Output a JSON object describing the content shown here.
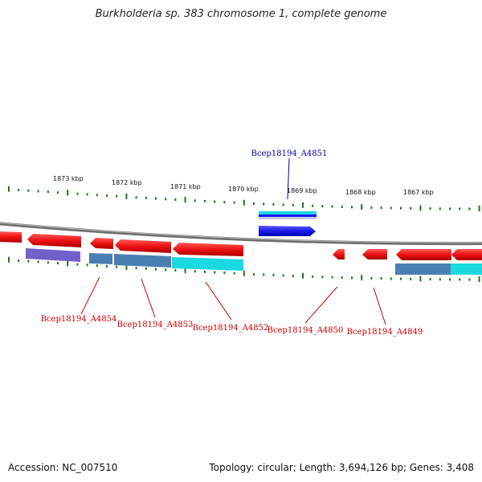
{
  "title": "Burkholderia sp. 383 chromosome 1, complete genome",
  "footer": {
    "accession_label": "Accession:",
    "accession": "NC_007510",
    "topology_text": "Topology: circular; Length: 3,694,126 bp; Genes: 3,408"
  },
  "colors": {
    "backbone": "#7a7a7a",
    "tick": "#1a7a1a",
    "gene_red": "#ee1111",
    "gene_blue": "#1a1aee",
    "feature_purple": "#7060c8",
    "feature_steel": "#4a7fb4",
    "feature_cyan": "#1ad9e0",
    "label_red": "#cc0000",
    "label_blue": "#0000aa"
  },
  "ticks": [
    "1873 kbp",
    "1872 kbp",
    "1871 kbp",
    "1870 kbp",
    "1869 kbp",
    "1868 kbp",
    "1867 kbp"
  ],
  "labels_top": [
    {
      "text": "Bcep18194_A4851",
      "color": "label_blue"
    }
  ],
  "labels_bottom": [
    {
      "text": "Bcep18194_A4854"
    },
    {
      "text": "Bcep18194_A4853"
    },
    {
      "text": "Bcep18194_A4852"
    },
    {
      "text": "Bcep18194_A4850"
    },
    {
      "text": "Bcep18194_A4849"
    }
  ]
}
